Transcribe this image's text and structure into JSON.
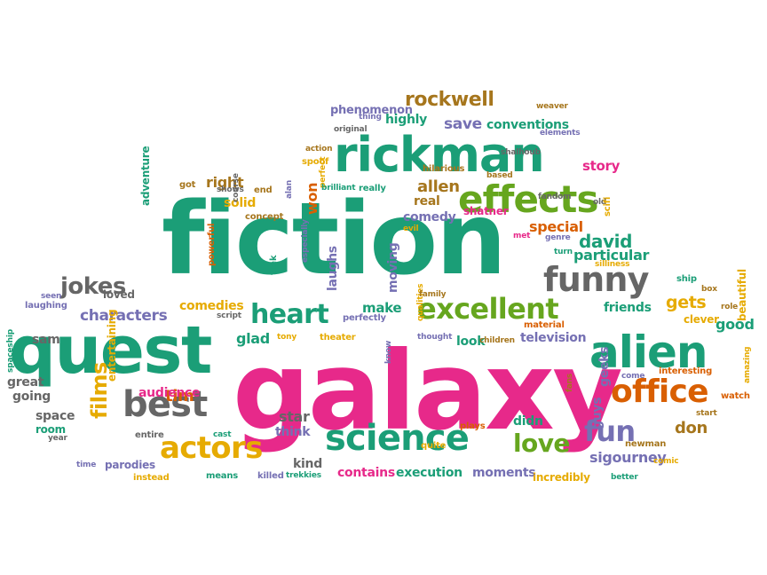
{
  "palette": {
    "green": "#1b9e77",
    "gray": "#666666",
    "pink": "#e7298a",
    "gold": "#e6ab02",
    "brown": "#a6761d",
    "purple": "#7570b3",
    "orange": "#d95f02",
    "lime": "#66a61e"
  },
  "words": [
    {
      "t": "galaxy",
      "c": "pink"
    },
    {
      "t": "fiction",
      "c": "green"
    },
    {
      "t": "quest",
      "c": "green"
    },
    {
      "t": "rickman",
      "c": "green"
    },
    {
      "t": "alien",
      "c": "green"
    },
    {
      "t": "science",
      "c": "green"
    },
    {
      "t": "effects",
      "c": "lime"
    },
    {
      "t": "best",
      "c": "gray"
    },
    {
      "t": "funny",
      "c": "gray"
    },
    {
      "t": "office",
      "c": "orange"
    },
    {
      "t": "excellent",
      "c": "lime"
    },
    {
      "t": "actors",
      "c": "gold"
    },
    {
      "t": "heart",
      "c": "green"
    },
    {
      "t": "fun",
      "c": "purple"
    },
    {
      "t": "love",
      "c": "lime"
    },
    {
      "t": "jokes",
      "c": "gray"
    },
    {
      "t": "films",
      "c": "gold"
    },
    {
      "t": "rockwell",
      "c": "brown"
    },
    {
      "t": "david",
      "c": "green"
    },
    {
      "t": "characters",
      "c": "purple"
    },
    {
      "t": "allen",
      "c": "brown"
    },
    {
      "t": "save",
      "c": "purple"
    },
    {
      "t": "conventions",
      "c": "green"
    },
    {
      "t": "story",
      "c": "pink"
    },
    {
      "t": "gets",
      "c": "gold"
    },
    {
      "t": "friends",
      "c": "green"
    },
    {
      "t": "tim",
      "c": "orange"
    },
    {
      "t": "don",
      "c": "brown"
    },
    {
      "t": "audience",
      "c": "pink"
    },
    {
      "t": "comedies",
      "c": "gold"
    },
    {
      "t": "moments",
      "c": "purple"
    },
    {
      "t": "execution",
      "c": "green"
    },
    {
      "t": "contains",
      "c": "pink"
    },
    {
      "t": "sigourney",
      "c": "purple"
    },
    {
      "t": "particular",
      "c": "green"
    },
    {
      "t": "special",
      "c": "orange"
    },
    {
      "t": "make",
      "c": "green"
    },
    {
      "t": "won",
      "c": "orange"
    },
    {
      "t": "comedy",
      "c": "purple"
    },
    {
      "t": "real",
      "c": "brown"
    },
    {
      "t": "right",
      "c": "brown"
    },
    {
      "t": "solid",
      "c": "gold"
    },
    {
      "t": "laughs",
      "c": "purple"
    },
    {
      "t": "guys",
      "c": "purple"
    },
    {
      "t": "geeks",
      "c": "purple"
    },
    {
      "t": "look",
      "c": "green"
    },
    {
      "t": "television",
      "c": "purple"
    },
    {
      "t": "glad",
      "c": "green"
    },
    {
      "t": "sam",
      "c": "gray"
    },
    {
      "t": "great",
      "c": "gray"
    },
    {
      "t": "going",
      "c": "gray"
    },
    {
      "t": "space",
      "c": "gray"
    },
    {
      "t": "room",
      "c": "green"
    },
    {
      "t": "star",
      "c": "gray"
    },
    {
      "t": "think",
      "c": "purple"
    },
    {
      "t": "kind",
      "c": "gray"
    },
    {
      "t": "didn",
      "c": "green"
    },
    {
      "t": "good",
      "c": "green"
    },
    {
      "t": "clever",
      "c": "gold"
    },
    {
      "t": "highly",
      "c": "green"
    },
    {
      "t": "phenomenon",
      "c": "purple"
    },
    {
      "t": "moving",
      "c": "purple"
    },
    {
      "t": "beautiful",
      "c": "gold"
    },
    {
      "t": "loved",
      "c": "gray"
    },
    {
      "t": "adventure",
      "c": "green"
    },
    {
      "t": "entertaining",
      "c": "gold"
    },
    {
      "t": "parodies",
      "c": "purple"
    },
    {
      "t": "entire",
      "c": "gray"
    },
    {
      "t": "shatner",
      "c": "pink"
    },
    {
      "t": "hilarious",
      "c": "brown"
    },
    {
      "t": "shows",
      "c": "gray"
    },
    {
      "t": "got",
      "c": "brown"
    },
    {
      "t": "end",
      "c": "brown"
    },
    {
      "t": "spoof",
      "c": "gold"
    },
    {
      "t": "action",
      "c": "brown"
    },
    {
      "t": "perfect",
      "c": "gold"
    },
    {
      "t": "brilliant",
      "c": "green"
    },
    {
      "t": "really",
      "c": "green"
    },
    {
      "t": "alan",
      "c": "purple"
    },
    {
      "t": "concept",
      "c": "brown"
    },
    {
      "t": "course",
      "c": "gray"
    },
    {
      "t": "original",
      "c": "gray"
    },
    {
      "t": "thing",
      "c": "purple"
    },
    {
      "t": "shalhoub",
      "c": "gray"
    },
    {
      "t": "weaver",
      "c": "brown"
    },
    {
      "t": "elements",
      "c": "purple"
    },
    {
      "t": "old",
      "c": "gray"
    },
    {
      "t": "scifi",
      "c": "gold"
    },
    {
      "t": "genre",
      "c": "purple"
    },
    {
      "t": "fandom",
      "c": "gray"
    },
    {
      "t": "turn",
      "c": "green"
    },
    {
      "t": "met",
      "c": "pink"
    },
    {
      "t": "silliness",
      "c": "gold"
    },
    {
      "t": "ship",
      "c": "green"
    },
    {
      "t": "box",
      "c": "brown"
    },
    {
      "t": "role",
      "c": "brown"
    },
    {
      "t": "evil",
      "c": "gold"
    },
    {
      "t": "trek",
      "c": "green"
    },
    {
      "t": "powerful",
      "c": "orange"
    },
    {
      "t": "especially",
      "c": "purple"
    },
    {
      "t": "perfectly",
      "c": "purple"
    },
    {
      "t": "qualities",
      "c": "gold"
    },
    {
      "t": "family",
      "c": "brown"
    },
    {
      "t": "thought",
      "c": "purple"
    },
    {
      "t": "children",
      "c": "brown"
    },
    {
      "t": "material",
      "c": "orange"
    },
    {
      "t": "know",
      "c": "purple"
    },
    {
      "t": "fans",
      "c": "brown"
    },
    {
      "t": "come",
      "c": "purple"
    },
    {
      "t": "interesting",
      "c": "orange"
    },
    {
      "t": "amazing",
      "c": "gold"
    },
    {
      "t": "watch",
      "c": "orange"
    },
    {
      "t": "start",
      "c": "brown"
    },
    {
      "t": "comic",
      "c": "gold"
    },
    {
      "t": "newman",
      "c": "brown"
    },
    {
      "t": "better",
      "c": "green"
    },
    {
      "t": "incredibly",
      "c": "gold"
    },
    {
      "t": "plays",
      "c": "orange"
    },
    {
      "t": "quite",
      "c": "gold"
    },
    {
      "t": "tony",
      "c": "gold"
    },
    {
      "t": "theater",
      "c": "gold"
    },
    {
      "t": "script",
      "c": "gray"
    },
    {
      "t": "seen",
      "c": "purple"
    },
    {
      "t": "laughing",
      "c": "purple"
    },
    {
      "t": "spaceship",
      "c": "green"
    },
    {
      "t": "year",
      "c": "gray"
    },
    {
      "t": "time",
      "c": "purple"
    },
    {
      "t": "instead",
      "c": "gold"
    },
    {
      "t": "means",
      "c": "green"
    },
    {
      "t": "cast",
      "c": "green"
    },
    {
      "t": "killed",
      "c": "purple"
    },
    {
      "t": "trekkies",
      "c": "green"
    },
    {
      "t": "based",
      "c": "brown"
    }
  ]
}
